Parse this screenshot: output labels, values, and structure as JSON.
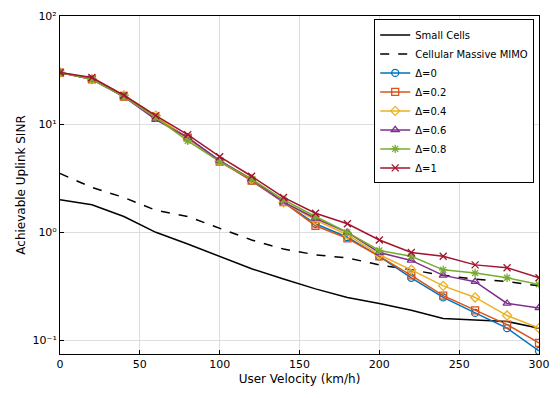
{
  "chart_data": {
    "type": "line",
    "x_label": "User Velocity (km/h)",
    "y_label": "Achievable Uplink SINR",
    "log": "y",
    "grid": true,
    "legend": "top-right",
    "x": [
      0,
      20,
      40,
      60,
      80,
      100,
      120,
      140,
      160,
      180,
      200,
      220,
      240,
      260,
      280,
      300
    ],
    "xlim": [
      0,
      300
    ],
    "xticks": [
      0,
      50,
      100,
      150,
      200,
      250,
      300
    ],
    "ylim": [
      0.075,
      100
    ],
    "yticks": [
      {
        "value": 0.1,
        "label": "10⁻¹"
      },
      {
        "value": 1,
        "label": "10⁰"
      },
      {
        "value": 10,
        "label": "10¹"
      },
      {
        "value": 100,
        "label": "10²"
      }
    ],
    "series": [
      {
        "name": "Small Cells",
        "color": "#000000",
        "line_style": "solid",
        "marker": "none",
        "values": [
          2.0,
          1.8,
          1.4,
          1.0,
          0.78,
          0.6,
          0.46,
          0.37,
          0.3,
          0.25,
          0.22,
          0.19,
          0.16,
          0.155,
          0.15,
          0.13
        ]
      },
      {
        "name": "Cellular Massive MIMO",
        "color": "#000000",
        "line_style": "dashed",
        "marker": "none",
        "values": [
          3.5,
          2.6,
          2.1,
          1.6,
          1.4,
          1.1,
          0.85,
          0.7,
          0.62,
          0.58,
          0.5,
          0.45,
          0.4,
          0.37,
          0.35,
          0.32
        ]
      },
      {
        "name": "Δ=0",
        "color": "#0072BD",
        "line_style": "solid",
        "marker": "circle",
        "values": [
          30,
          26,
          18,
          11.5,
          7.5,
          4.6,
          3.0,
          1.9,
          1.2,
          0.9,
          0.6,
          0.38,
          0.25,
          0.18,
          0.13,
          0.08
        ]
      },
      {
        "name": "Δ=0.2",
        "color": "#D95319",
        "line_style": "solid",
        "marker": "square",
        "values": [
          30,
          26,
          18,
          11.5,
          7.5,
          4.5,
          3.0,
          1.9,
          1.15,
          0.88,
          0.6,
          0.4,
          0.26,
          0.19,
          0.14,
          0.095
        ]
      },
      {
        "name": "Δ=0.4",
        "color": "#EDB120",
        "line_style": "solid",
        "marker": "diamond",
        "values": [
          30,
          26,
          18.5,
          12,
          7.3,
          4.6,
          3.1,
          1.9,
          1.3,
          0.95,
          0.62,
          0.45,
          0.32,
          0.25,
          0.17,
          0.13
        ]
      },
      {
        "name": "Δ=0.6",
        "color": "#7E2F8E",
        "line_style": "solid",
        "marker": "triangle",
        "values": [
          30,
          26,
          18,
          11,
          7.5,
          4.6,
          3.1,
          1.9,
          1.35,
          1.0,
          0.65,
          0.55,
          0.4,
          0.35,
          0.22,
          0.2
        ]
      },
      {
        "name": "Δ=0.8",
        "color": "#77AC30",
        "line_style": "solid",
        "marker": "asterisk",
        "values": [
          30,
          26,
          18,
          11.5,
          7.0,
          4.5,
          3.1,
          2.0,
          1.4,
          1.0,
          0.68,
          0.6,
          0.45,
          0.42,
          0.38,
          0.33
        ]
      },
      {
        "name": "Δ=1",
        "color": "#A2142F",
        "line_style": "solid",
        "marker": "x",
        "values": [
          30,
          27,
          18.5,
          12,
          8,
          5,
          3.3,
          2.1,
          1.5,
          1.2,
          0.85,
          0.65,
          0.6,
          0.5,
          0.47,
          0.38
        ]
      }
    ]
  }
}
